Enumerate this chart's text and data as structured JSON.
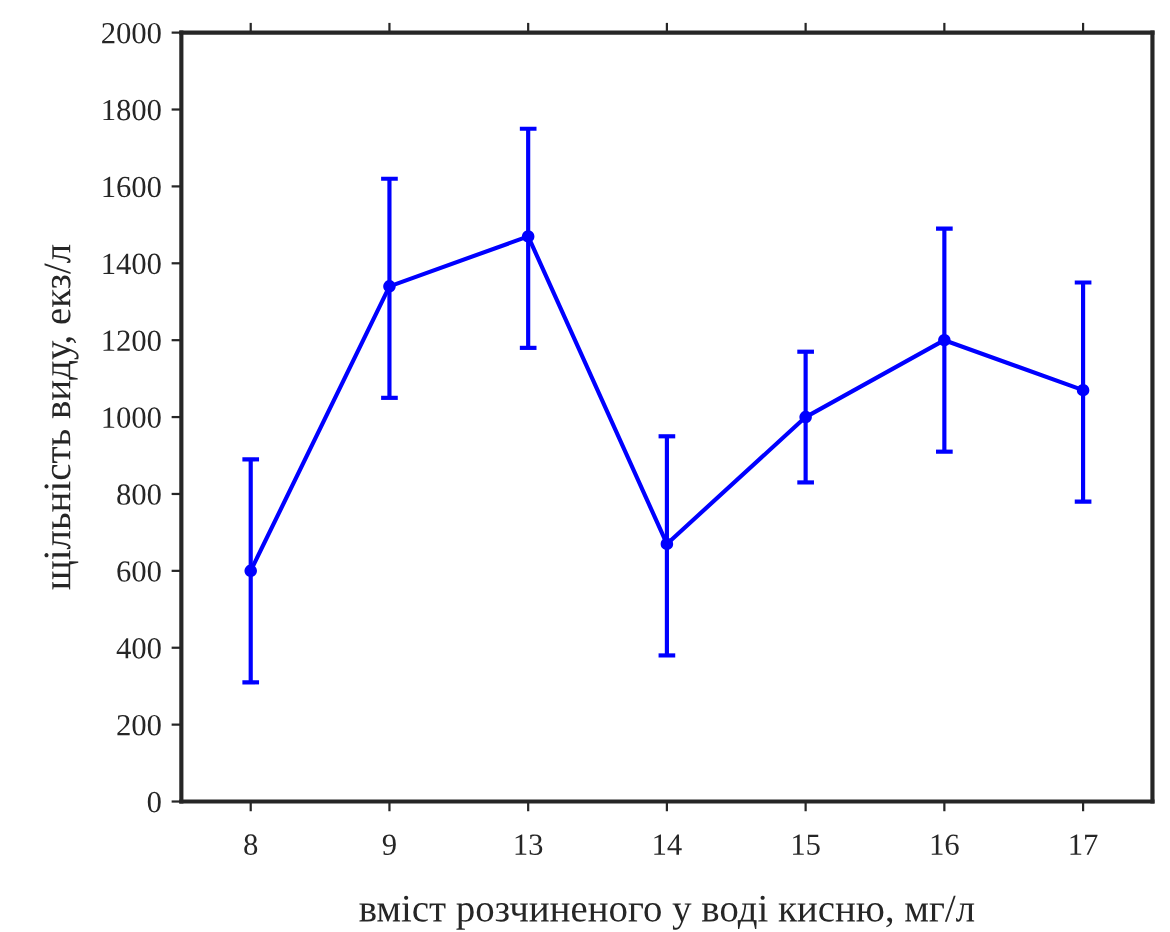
{
  "chart_data": {
    "type": "line",
    "xlabel": "вміст розчиненого у воді кисню, мг/л",
    "ylabel": "щільність виду, екз/л",
    "categories": [
      "8",
      "9",
      "13",
      "14",
      "15",
      "16",
      "17"
    ],
    "series": [
      {
        "color": "#0000ff",
        "values": [
          600,
          1340,
          1470,
          670,
          1000,
          1200,
          1070
        ],
        "errors": [
          [
            310,
            890
          ],
          [
            1050,
            1620
          ],
          [
            1180,
            1750
          ],
          [
            380,
            950
          ],
          [
            830,
            1170
          ],
          [
            910,
            1490
          ],
          [
            780,
            1350
          ]
        ]
      }
    ],
    "ylim": [
      0,
      2000
    ],
    "yticks": [
      0,
      200,
      400,
      600,
      800,
      1000,
      1200,
      1400,
      1600,
      1800,
      2000
    ],
    "marker": "circle",
    "line_style": "solid",
    "grid": false,
    "legend": false
  }
}
